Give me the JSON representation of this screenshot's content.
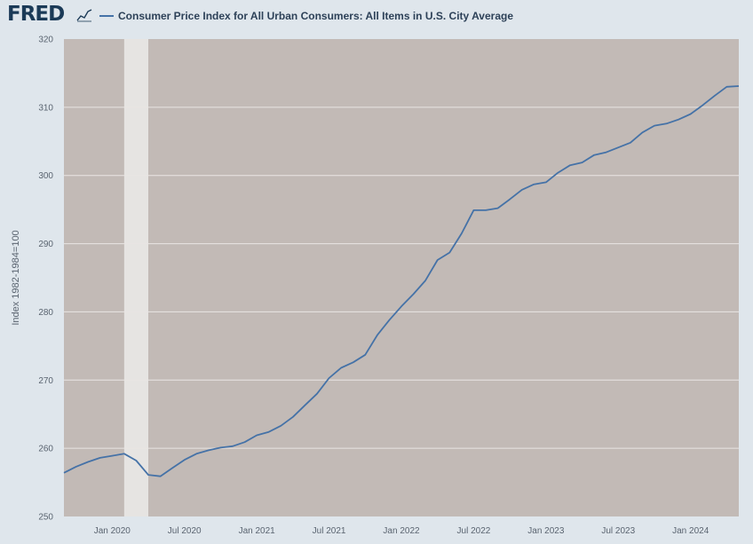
{
  "header": {
    "logo_text": "FRED",
    "logo_mark_icon": "fred-line-graph-icon"
  },
  "chart_data": {
    "type": "line",
    "title": "",
    "ylabel": "Index 1982-1984=100",
    "xlabel": "",
    "ylim": [
      250,
      320
    ],
    "yticks": [
      250,
      260,
      270,
      280,
      290,
      300,
      310,
      320
    ],
    "xlim": [
      "2019-09",
      "2024-05"
    ],
    "xticks": [
      {
        "date": "2020-01",
        "label": "Jan 2020"
      },
      {
        "date": "2020-07",
        "label": "Jul 2020"
      },
      {
        "date": "2021-01",
        "label": "Jan 2021"
      },
      {
        "date": "2021-07",
        "label": "Jul 2021"
      },
      {
        "date": "2022-01",
        "label": "Jan 2022"
      },
      {
        "date": "2022-07",
        "label": "Jul 2022"
      },
      {
        "date": "2023-01",
        "label": "Jan 2023"
      },
      {
        "date": "2023-07",
        "label": "Jul 2023"
      },
      {
        "date": "2024-01",
        "label": "Jan 2024"
      }
    ],
    "recession": {
      "start": "2020-02",
      "end": "2020-04"
    },
    "grid": true,
    "legend_position": "top",
    "colors": {
      "series": "#4572a7",
      "plot_background": "#c2bab6",
      "recession_band": "#e6e4e2",
      "gridline": "#e9e5e3"
    },
    "series": [
      {
        "name": "Consumer Price Index for All Urban Consumers: All Items in U.S. City Average",
        "x": [
          "2019-09",
          "2019-10",
          "2019-11",
          "2019-12",
          "2020-01",
          "2020-02",
          "2020-03",
          "2020-04",
          "2020-05",
          "2020-06",
          "2020-07",
          "2020-08",
          "2020-09",
          "2020-10",
          "2020-11",
          "2020-12",
          "2021-01",
          "2021-02",
          "2021-03",
          "2021-04",
          "2021-05",
          "2021-06",
          "2021-07",
          "2021-08",
          "2021-09",
          "2021-10",
          "2021-11",
          "2021-12",
          "2022-01",
          "2022-02",
          "2022-03",
          "2022-04",
          "2022-05",
          "2022-06",
          "2022-07",
          "2022-08",
          "2022-09",
          "2022-10",
          "2022-11",
          "2022-12",
          "2023-01",
          "2023-02",
          "2023-03",
          "2023-04",
          "2023-05",
          "2023-06",
          "2023-07",
          "2023-08",
          "2023-09",
          "2023-10",
          "2023-11",
          "2023-12",
          "2024-01",
          "2024-02",
          "2024-03",
          "2024-04",
          "2024-05"
        ],
        "values": [
          256.4,
          257.3,
          258.0,
          258.6,
          258.9,
          259.2,
          258.2,
          256.1,
          255.9,
          257.1,
          258.3,
          259.2,
          259.7,
          260.1,
          260.3,
          260.9,
          261.9,
          262.4,
          263.3,
          264.6,
          266.3,
          268.0,
          270.3,
          271.8,
          272.6,
          273.7,
          276.6,
          278.8,
          280.8,
          282.6,
          284.6,
          287.6,
          288.7,
          291.5,
          294.9,
          294.9,
          295.2,
          296.5,
          297.9,
          298.7,
          299.0,
          300.4,
          301.5,
          301.9,
          303.0,
          303.4,
          304.1,
          304.8,
          306.3,
          307.3,
          307.6,
          308.2,
          309.0,
          310.3,
          311.7,
          313.0,
          313.1
        ]
      }
    ]
  }
}
